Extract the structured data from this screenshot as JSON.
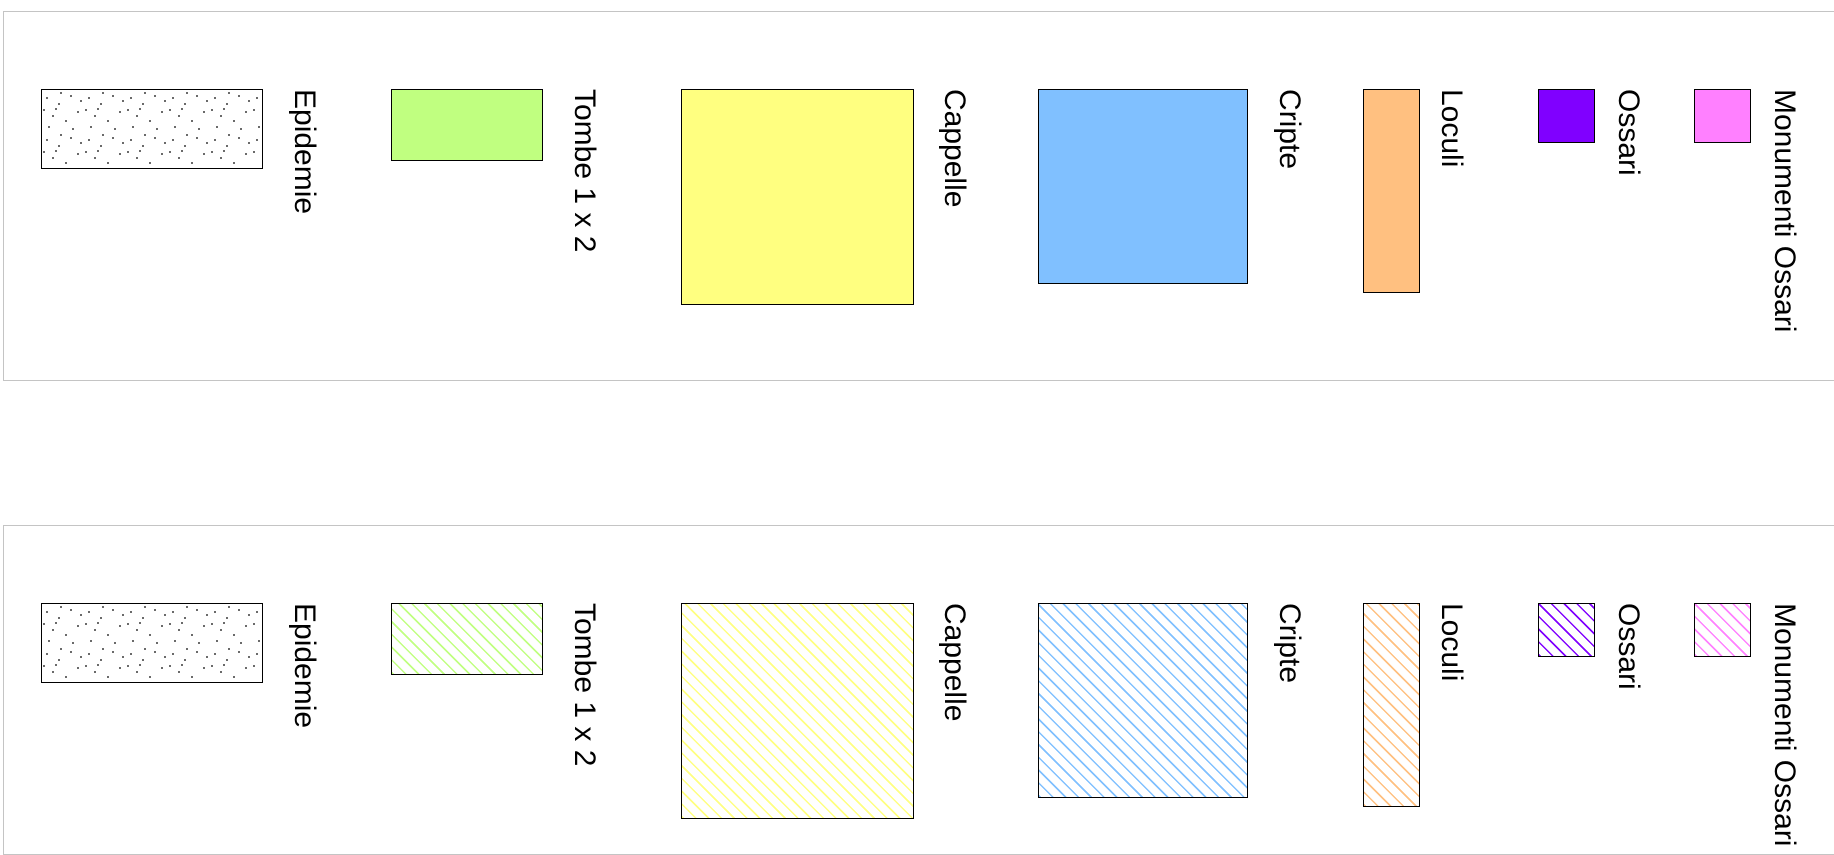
{
  "legend_solid": {
    "items": [
      {
        "key": "epidemie",
        "label": "Epidemie",
        "pattern": "dots",
        "color": "#ffffff"
      },
      {
        "key": "tombe",
        "label": "Tombe 1 x 2",
        "pattern": "solid",
        "color": "#c0ff80"
      },
      {
        "key": "cappelle",
        "label": "Cappelle",
        "pattern": "solid",
        "color": "#ffff80"
      },
      {
        "key": "cripte",
        "label": "Cripte",
        "pattern": "solid",
        "color": "#80c0ff"
      },
      {
        "key": "loculi",
        "label": "Loculi",
        "pattern": "solid",
        "color": "#ffc080"
      },
      {
        "key": "ossari",
        "label": "Ossari",
        "pattern": "solid",
        "color": "#8000ff"
      },
      {
        "key": "monumenti",
        "label": "Monumenti Ossari",
        "pattern": "solid",
        "color": "#ff80ff"
      }
    ]
  },
  "legend_hatched": {
    "items": [
      {
        "key": "epidemie",
        "label": "Epidemie",
        "pattern": "dots",
        "color": "#ffffff"
      },
      {
        "key": "tombe",
        "label": "Tombe 1 x 2",
        "pattern": "hatch",
        "color": "#c0ff80"
      },
      {
        "key": "cappelle",
        "label": "Cappelle",
        "pattern": "hatch",
        "color": "#ffff80"
      },
      {
        "key": "cripte",
        "label": "Cripte",
        "pattern": "hatch",
        "color": "#80c0ff"
      },
      {
        "key": "loculi",
        "label": "Loculi",
        "pattern": "hatch",
        "color": "#ffc080"
      },
      {
        "key": "ossari",
        "label": "Ossari",
        "pattern": "hatch",
        "color": "#8000ff"
      },
      {
        "key": "monumenti",
        "label": "Monumenti Ossari",
        "pattern": "hatch",
        "color": "#ff80ff"
      }
    ]
  }
}
